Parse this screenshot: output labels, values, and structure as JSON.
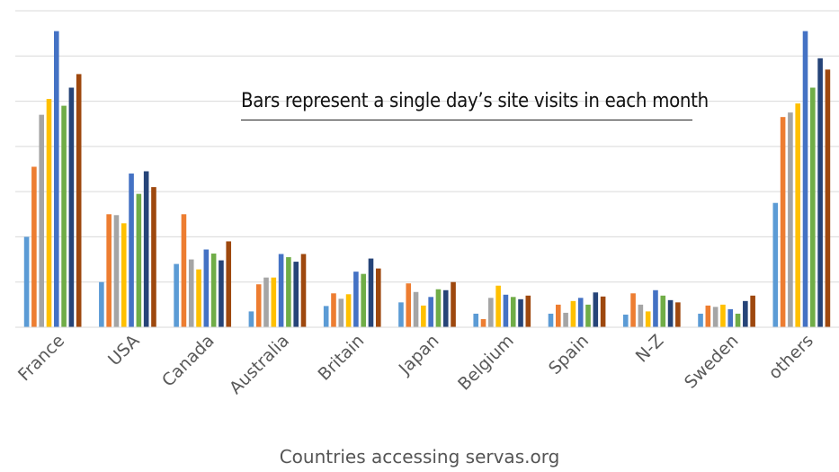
{
  "chart_data": {
    "type": "bar",
    "annotation": "Bars represent a single day’s site visits in each month",
    "xlabel": "Countries accessing servas.org",
    "ylabel": "",
    "ylim": [
      0,
      700
    ],
    "grid": true,
    "categories": [
      "France",
      "USA",
      "Canada",
      "Australia",
      "Britain",
      "Japan",
      "Belgium",
      "Spain",
      "N-Z",
      "Sweden",
      "others"
    ],
    "colors": [
      "#5b9bd5",
      "#ed7d31",
      "#a5a5a5",
      "#ffc000",
      "#4472c4",
      "#70ad47",
      "#264478",
      "#9e480e"
    ],
    "series": [
      {
        "values": [
          200,
          100,
          140,
          35,
          47,
          55,
          30,
          30,
          28,
          30,
          275
        ]
      },
      {
        "values": [
          355,
          250,
          250,
          95,
          75,
          97,
          18,
          50,
          75,
          48,
          465
        ]
      },
      {
        "values": [
          470,
          248,
          150,
          110,
          63,
          78,
          65,
          32,
          50,
          45,
          475
        ]
      },
      {
        "values": [
          505,
          230,
          128,
          110,
          73,
          48,
          92,
          58,
          35,
          50,
          495
        ]
      },
      {
        "values": [
          655,
          340,
          172,
          162,
          123,
          67,
          72,
          65,
          82,
          40,
          655
        ]
      },
      {
        "values": [
          490,
          295,
          163,
          155,
          118,
          84,
          67,
          50,
          70,
          30,
          530
        ]
      },
      {
        "values": [
          530,
          345,
          148,
          145,
          152,
          82,
          62,
          77,
          60,
          58,
          595
        ]
      },
      {
        "values": [
          560,
          310,
          190,
          162,
          130,
          100,
          70,
          68,
          55,
          70,
          570
        ]
      }
    ]
  }
}
